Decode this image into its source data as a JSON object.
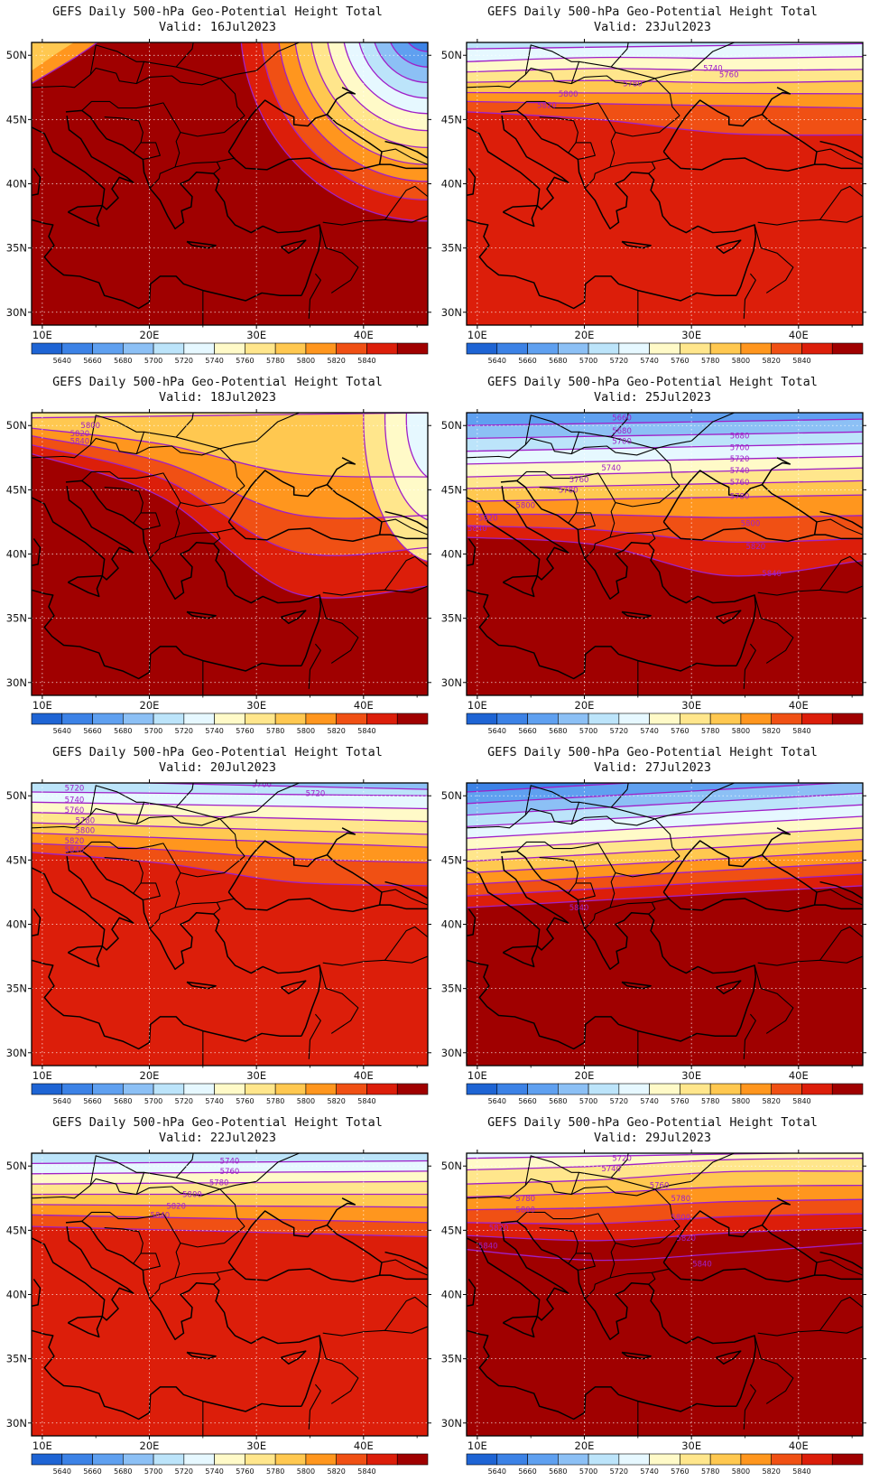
{
  "map_title": "GEFS Daily 500-hPa Geo-Potential Height Total",
  "valid_prefix": "Valid:",
  "lat_labels": [
    "50N",
    "45N",
    "40N",
    "35N",
    "30N"
  ],
  "lat_values": [
    50,
    45,
    40,
    35,
    30
  ],
  "lon_labels": [
    "10E",
    "20E",
    "30E",
    "40E"
  ],
  "lon_values": [
    10,
    20,
    30,
    40
  ],
  "extent": {
    "lon": [
      9,
      46
    ],
    "lat": [
      29,
      51
    ]
  },
  "colorbar": {
    "levels": [
      5640,
      5660,
      5680,
      5700,
      5720,
      5740,
      5760,
      5780,
      5800,
      5820,
      5840
    ],
    "level_labels": [
      "5640",
      "5660",
      "5680",
      "5700",
      "5720",
      "5740",
      "5760",
      "5780",
      "5800",
      "5820",
      "5840"
    ],
    "colors": [
      "#1e64d4",
      "#3c82e6",
      "#5fa0f0",
      "#8cc0f5",
      "#bce4fa",
      "#e6f8ff",
      "#fffac8",
      "#ffe68c",
      "#ffc850",
      "#ff961e",
      "#f05014",
      "#dc1e0a",
      "#a00000"
    ]
  },
  "contour_color": "#a020c8",
  "panels": [
    {
      "date": "16Jul2023",
      "labels": []
    },
    {
      "date": "23Jul2023",
      "labels": [
        {
          "text": "5740",
          "lon": 32,
          "lat": 49.0
        },
        {
          "text": "5760",
          "lon": 33.5,
          "lat": 48.5
        },
        {
          "text": "5780",
          "lon": 24.5,
          "lat": 47.8
        },
        {
          "text": "5800",
          "lon": 18.5,
          "lat": 47.0
        },
        {
          "text": "5820",
          "lon": 16.5,
          "lat": 46.1
        }
      ]
    },
    {
      "date": "18Jul2023",
      "labels": [
        {
          "text": "5800",
          "lon": 14.5,
          "lat": 50.0
        },
        {
          "text": "5820",
          "lon": 13.5,
          "lat": 49.4
        },
        {
          "text": "5840",
          "lon": 13.5,
          "lat": 48.8
        }
      ]
    },
    {
      "date": "25Jul2023",
      "labels": [
        {
          "text": "5660",
          "lon": 23.5,
          "lat": 50.6
        },
        {
          "text": "5680",
          "lon": 23.5,
          "lat": 49.6
        },
        {
          "text": "5700",
          "lon": 23.5,
          "lat": 48.8
        },
        {
          "text": "5680",
          "lon": 34.5,
          "lat": 49.2
        },
        {
          "text": "5700",
          "lon": 34.5,
          "lat": 48.3
        },
        {
          "text": "5720",
          "lon": 34.5,
          "lat": 47.4
        },
        {
          "text": "5740",
          "lon": 34.5,
          "lat": 46.5
        },
        {
          "text": "5760",
          "lon": 34.5,
          "lat": 45.6
        },
        {
          "text": "5780",
          "lon": 34.5,
          "lat": 44.5
        },
        {
          "text": "5740",
          "lon": 22.5,
          "lat": 46.7
        },
        {
          "text": "5760",
          "lon": 19.5,
          "lat": 45.8
        },
        {
          "text": "5780",
          "lon": 18.5,
          "lat": 45.0
        },
        {
          "text": "5800",
          "lon": 14.5,
          "lat": 43.8
        },
        {
          "text": "5820",
          "lon": 11.0,
          "lat": 42.8
        },
        {
          "text": "5840",
          "lon": 10.0,
          "lat": 42.0
        },
        {
          "text": "5800",
          "lon": 35.5,
          "lat": 42.4
        },
        {
          "text": "5820",
          "lon": 36.0,
          "lat": 40.6
        },
        {
          "text": "5840",
          "lon": 37.5,
          "lat": 38.5
        }
      ]
    },
    {
      "date": "20Jul2023",
      "labels": [
        {
          "text": "5700",
          "lon": 30.5,
          "lat": 50.9
        },
        {
          "text": "5720",
          "lon": 35.5,
          "lat": 50.2
        },
        {
          "text": "5720",
          "lon": 13.0,
          "lat": 50.6
        },
        {
          "text": "5740",
          "lon": 13.0,
          "lat": 49.7
        },
        {
          "text": "5760",
          "lon": 13.0,
          "lat": 48.9
        },
        {
          "text": "5780",
          "lon": 14.0,
          "lat": 48.1
        },
        {
          "text": "5800",
          "lon": 14.0,
          "lat": 47.3
        },
        {
          "text": "5820",
          "lon": 13.0,
          "lat": 46.5
        },
        {
          "text": "5840",
          "lon": 13.0,
          "lat": 45.8
        }
      ]
    },
    {
      "date": "27Jul2023",
      "labels": [
        {
          "text": "5840",
          "lon": 19.5,
          "lat": 41.3
        }
      ]
    },
    {
      "date": "22Jul2023",
      "labels": [
        {
          "text": "5740",
          "lon": 27.5,
          "lat": 50.4
        },
        {
          "text": "5760",
          "lon": 27.5,
          "lat": 49.6
        },
        {
          "text": "5780",
          "lon": 26.5,
          "lat": 48.7
        },
        {
          "text": "5800",
          "lon": 24.0,
          "lat": 47.8
        },
        {
          "text": "5820",
          "lon": 22.5,
          "lat": 46.9
        },
        {
          "text": "5840",
          "lon": 21.0,
          "lat": 46.2
        }
      ]
    },
    {
      "date": "29Jul2023",
      "labels": [
        {
          "text": "5720",
          "lon": 23.5,
          "lat": 50.6
        },
        {
          "text": "5740",
          "lon": 22.5,
          "lat": 49.8
        },
        {
          "text": "5760",
          "lon": 27.0,
          "lat": 48.5
        },
        {
          "text": "5780",
          "lon": 14.5,
          "lat": 47.5
        },
        {
          "text": "5800",
          "lon": 14.5,
          "lat": 46.6
        },
        {
          "text": "5780",
          "lon": 29.0,
          "lat": 47.5
        },
        {
          "text": "5800",
          "lon": 29.0,
          "lat": 46.0
        },
        {
          "text": "5820",
          "lon": 12.0,
          "lat": 45.2
        },
        {
          "text": "5840",
          "lon": 11.0,
          "lat": 43.8
        },
        {
          "text": "5820",
          "lon": 29.5,
          "lat": 44.4
        },
        {
          "text": "5840",
          "lon": 31.0,
          "lat": 42.4
        }
      ]
    }
  ]
}
